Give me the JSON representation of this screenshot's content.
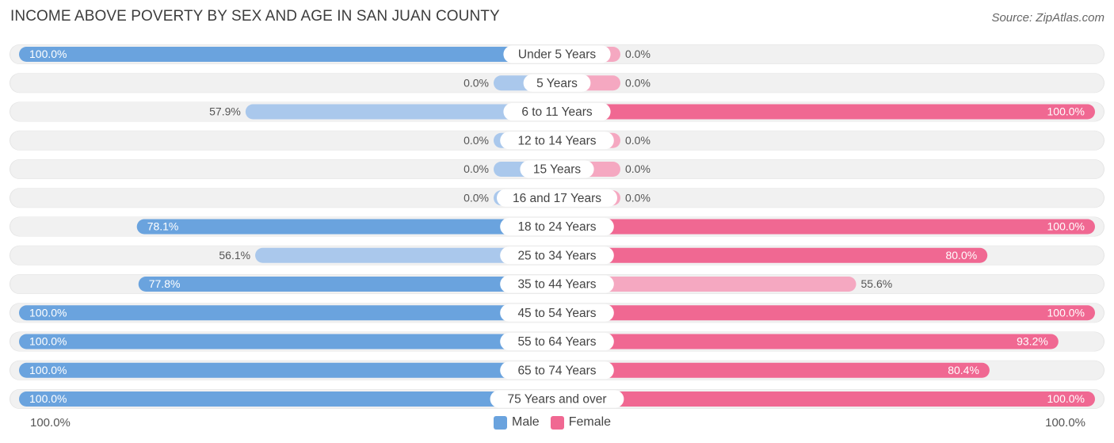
{
  "title": "INCOME ABOVE POVERTY BY SEX AND AGE IN SAN JUAN COUNTY",
  "source": "Source: ZipAtlas.com",
  "colors": {
    "male_strong": "#6aa3de",
    "male_light": "#aac8ec",
    "female_strong": "#f06892",
    "female_light": "#f5a8c1",
    "row_bg": "#f1f1f1"
  },
  "legend": {
    "male_label": "Male",
    "female_label": "Female"
  },
  "axis": {
    "left_label": "100.0%",
    "right_label": "100.0%"
  },
  "chart_data": {
    "type": "bar",
    "orientation": "diverging-horizontal",
    "title": "INCOME ABOVE POVERTY BY SEX AND AGE IN SAN JUAN COUNTY",
    "xlim": [
      0,
      100
    ],
    "categories": [
      "Under 5 Years",
      "5 Years",
      "6 to 11 Years",
      "12 to 14 Years",
      "15 Years",
      "16 and 17 Years",
      "18 to 24 Years",
      "25 to 34 Years",
      "35 to 44 Years",
      "45 to 54 Years",
      "55 to 64 Years",
      "65 to 74 Years",
      "75 Years and over"
    ],
    "series": [
      {
        "name": "Male",
        "values": [
          100.0,
          0.0,
          57.9,
          0.0,
          0.0,
          0.0,
          78.1,
          56.1,
          77.8,
          100.0,
          100.0,
          100.0,
          100.0
        ],
        "labels": [
          "100.0%",
          "0.0%",
          "57.9%",
          "0.0%",
          "0.0%",
          "0.0%",
          "78.1%",
          "56.1%",
          "77.8%",
          "100.0%",
          "100.0%",
          "100.0%",
          "100.0%"
        ]
      },
      {
        "name": "Female",
        "values": [
          0.0,
          0.0,
          100.0,
          0.0,
          0.0,
          0.0,
          100.0,
          80.0,
          55.6,
          100.0,
          93.2,
          80.4,
          100.0
        ],
        "labels": [
          "0.0%",
          "0.0%",
          "100.0%",
          "0.0%",
          "0.0%",
          "0.0%",
          "100.0%",
          "80.0%",
          "55.6%",
          "100.0%",
          "93.2%",
          "80.4%",
          "100.0%"
        ]
      }
    ]
  }
}
